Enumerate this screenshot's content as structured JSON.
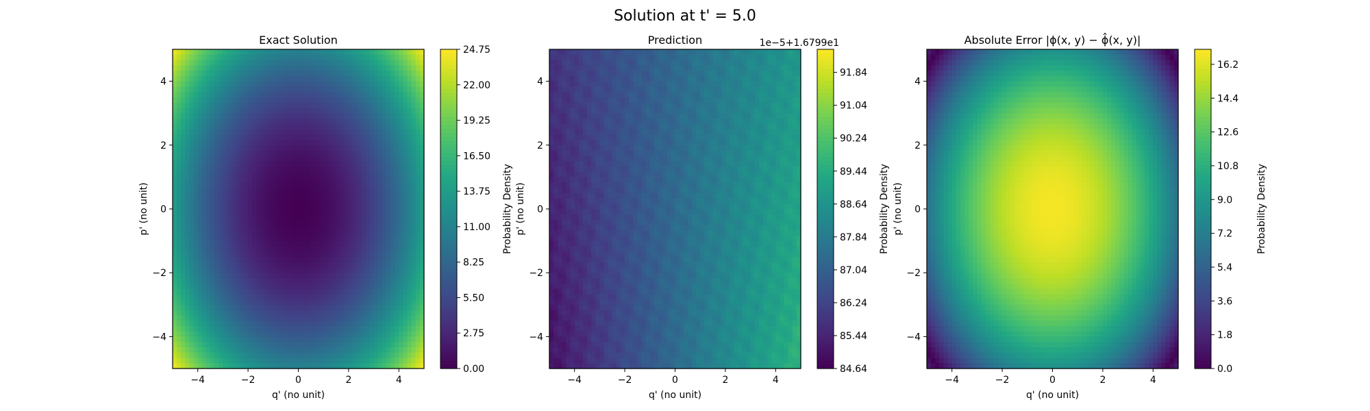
{
  "figure": {
    "suptitle": "Solution at t' = 5.0"
  },
  "chart_data": [
    {
      "type": "heatmap",
      "title": "Exact Solution",
      "xlabel": "q' (no unit)",
      "ylabel": "p' (no unit)",
      "xlim": [
        -5,
        5
      ],
      "ylim": [
        -5,
        5
      ],
      "x_ticks": [
        "−4",
        "−2",
        "0",
        "2",
        "4"
      ],
      "y_ticks": [
        "−4",
        "−2",
        "0",
        "2",
        "4"
      ],
      "colormap": "viridis",
      "colorbar": {
        "label": "Probability Density",
        "range": [
          0,
          24.75
        ],
        "ticks": [
          0,
          2.75,
          5.5,
          8.25,
          11,
          13.75,
          16.5,
          19.25,
          22,
          24.75
        ],
        "tick_labels": [
          "0.00",
          "2.75",
          "5.50",
          "8.25",
          "11.00",
          "13.75",
          "16.50",
          "19.25",
          "22.00",
          "24.75"
        ],
        "offset_text": ""
      },
      "field": {
        "kind": "quadratic",
        "value_at_center": 0.0,
        "value_at_corner": 24.75
      }
    },
    {
      "type": "heatmap",
      "title": "Prediction",
      "xlabel": "q' (no unit)",
      "ylabel": "p' (no unit)",
      "xlim": [
        -5,
        5
      ],
      "ylim": [
        -5,
        5
      ],
      "x_ticks": [
        "−4",
        "−2",
        "0",
        "2",
        "4"
      ],
      "y_ticks": [
        "−4",
        "−2",
        "0",
        "2",
        "4"
      ],
      "colormap": "viridis",
      "colorbar": {
        "label": "Probability Density",
        "range": [
          84.64,
          92.4
        ],
        "ticks": [
          84.64,
          85.44,
          86.24,
          87.04,
          87.84,
          88.64,
          89.44,
          90.24,
          91.04,
          91.84
        ],
        "tick_labels": [
          "84.64",
          "85.44",
          "86.24",
          "87.04",
          "87.84",
          "88.64",
          "89.44",
          "90.24",
          "91.04",
          "91.84"
        ],
        "offset_text": "1e−5+1.6799e1"
      },
      "field": {
        "kind": "gradient",
        "value_low_left": 85.0,
        "value_top_right": 90.4,
        "value_bottom_right": 92.3
      }
    },
    {
      "type": "heatmap",
      "title": "Absolute Error |ϕ(x, y) − ϕ̂(x, y)|",
      "xlabel": "q' (no unit)",
      "ylabel": "p' (no unit)",
      "xlim": [
        -5,
        5
      ],
      "ylim": [
        -5,
        5
      ],
      "x_ticks": [
        "−4",
        "−2",
        "0",
        "2",
        "4"
      ],
      "y_ticks": [
        "−4",
        "−2",
        "0",
        "2",
        "4"
      ],
      "colormap": "viridis",
      "colorbar": {
        "label": "Probability Density",
        "range": [
          0,
          17
        ],
        "ticks": [
          0,
          1.8,
          3.6,
          5.4,
          7.2,
          9,
          10.8,
          12.6,
          14.4,
          16.2
        ],
        "tick_labels": [
          "0.0",
          "1.8",
          "3.6",
          "5.4",
          "7.2",
          "9.0",
          "10.8",
          "12.6",
          "14.4",
          "16.2"
        ],
        "offset_text": ""
      },
      "field": {
        "kind": "abs_difference",
        "value_at_center": 16.8
      }
    }
  ]
}
